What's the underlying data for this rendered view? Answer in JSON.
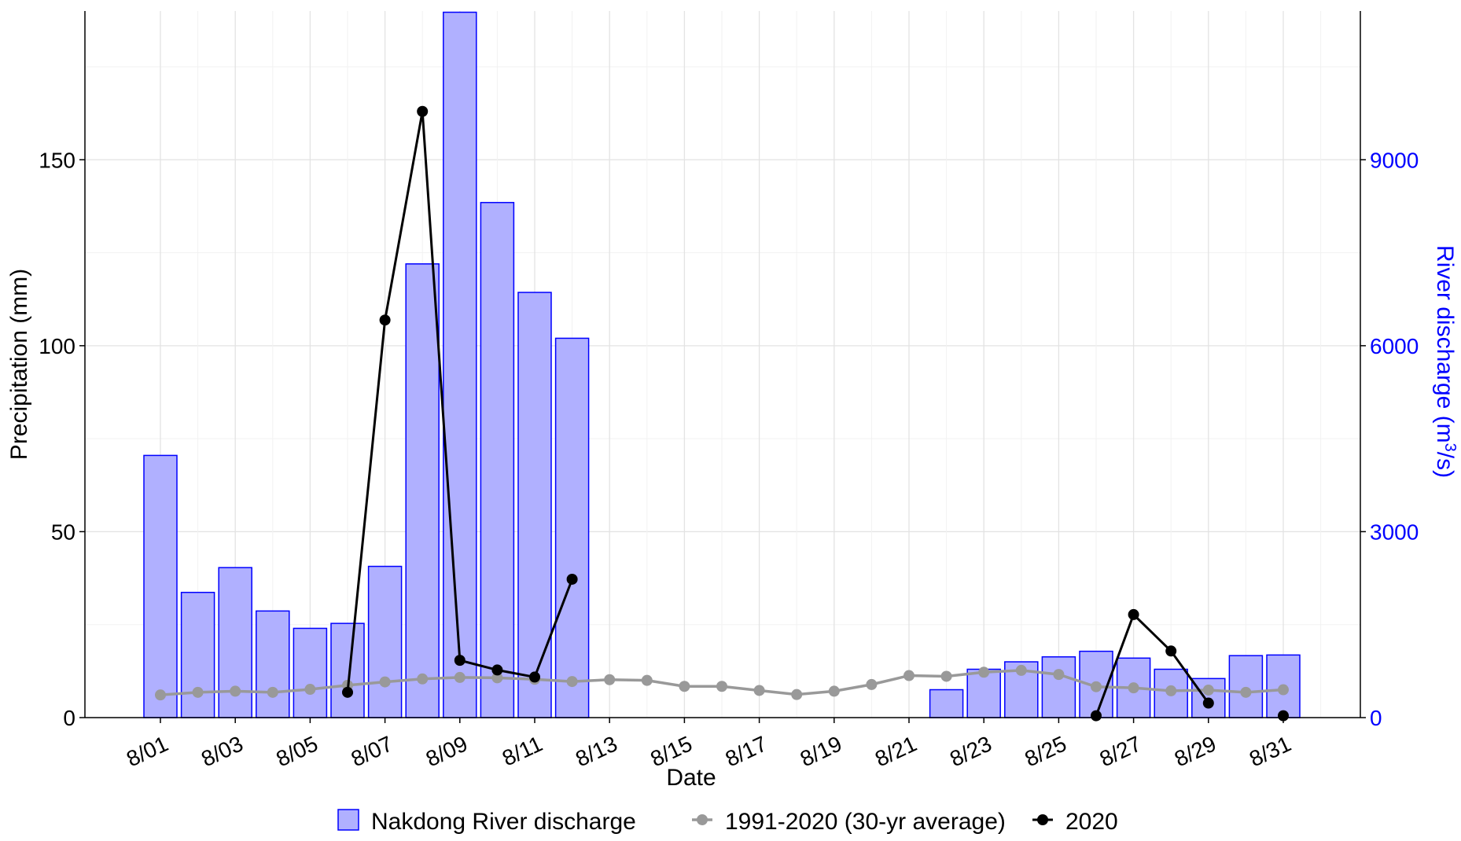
{
  "chart_data": {
    "type": "bar+line",
    "xlabel": "Date",
    "ylabel": "Precipitation (mm)",
    "ylabel_right": {
      "main": "River discharge (m",
      "sup": "3",
      "tail": "/s)"
    },
    "ylim": [
      0,
      190
    ],
    "y2lim": [
      0,
      11400
    ],
    "yticks": [
      0,
      50,
      100,
      150
    ],
    "y2ticks": [
      0,
      3000,
      6000,
      9000
    ],
    "grid": true,
    "legend_position": "bottom",
    "days": [
      1,
      2,
      3,
      4,
      5,
      6,
      7,
      8,
      9,
      10,
      11,
      12,
      13,
      14,
      15,
      16,
      17,
      18,
      19,
      20,
      21,
      22,
      23,
      24,
      25,
      26,
      27,
      28,
      29,
      30,
      31
    ],
    "xtick_labels": [
      "8/01",
      "8/03",
      "8/05",
      "8/07",
      "8/09",
      "8/11",
      "8/13",
      "8/15",
      "8/17",
      "8/19",
      "8/21",
      "8/23",
      "8/25",
      "8/27",
      "8/29",
      "8/31"
    ],
    "xtick_days": [
      1,
      3,
      5,
      7,
      9,
      11,
      13,
      15,
      17,
      19,
      21,
      23,
      25,
      27,
      29,
      31
    ],
    "series": [
      {
        "name": "Nakdong River discharge",
        "type": "bar",
        "axis": "right",
        "color": "#b0b0ff",
        "edge": "#0000ff",
        "values": [
          4230,
          2020,
          2420,
          1720,
          1440,
          1520,
          2440,
          7320,
          11380,
          8310,
          6860,
          6120,
          null,
          null,
          null,
          null,
          null,
          null,
          null,
          null,
          null,
          450,
          780,
          900,
          980,
          1070,
          960,
          780,
          630,
          1000,
          1010
        ]
      },
      {
        "name": "1991-2020 (30-yr average)",
        "type": "line",
        "axis": "left",
        "color": "#999999",
        "values": [
          6.1,
          6.8,
          7.1,
          6.8,
          7.6,
          8.7,
          9.6,
          10.4,
          10.8,
          10.7,
          10.3,
          9.7,
          10.2,
          10.0,
          8.4,
          8.4,
          7.3,
          6.2,
          7.1,
          8.9,
          11.3,
          11.1,
          12.2,
          12.7,
          11.6,
          8.3,
          8.0,
          7.2,
          7.4,
          6.8,
          7.5
        ]
      },
      {
        "name": "2020",
        "type": "line",
        "axis": "left",
        "color": "#000000",
        "values": [
          null,
          null,
          null,
          null,
          null,
          6.8,
          106.9,
          163.0,
          15.4,
          12.8,
          10.9,
          37.2,
          null,
          null,
          null,
          null,
          null,
          null,
          null,
          null,
          null,
          null,
          null,
          null,
          null,
          0.5,
          27.7,
          17.9,
          3.9,
          null,
          0.5
        ]
      }
    ]
  }
}
